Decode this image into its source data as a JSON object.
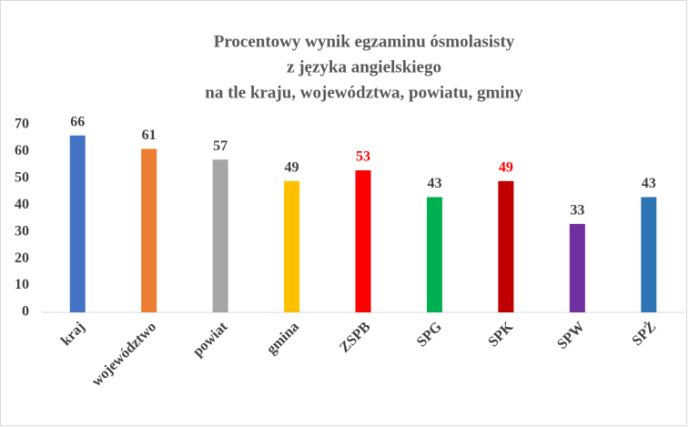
{
  "chart_data": {
    "type": "bar",
    "title": [
      "Procentowy wynik egzaminu ósmolasisty",
      "z języka angielskiego",
      "na tle kraju, województwa, powiatu, gminy"
    ],
    "categories": [
      "kraj",
      "województwo",
      "powiat",
      "gmina",
      "ZSPB",
      "SPG",
      "SPK",
      "SPW",
      "SPŻ"
    ],
    "values": [
      66,
      61,
      57,
      49,
      53,
      43,
      49,
      33,
      43
    ],
    "colors": [
      "#4472c4",
      "#ed7d31",
      "#a5a5a5",
      "#ffc000",
      "#ff0000",
      "#00b050",
      "#c00000",
      "#7030a0",
      "#2e75b6"
    ],
    "value_label_colors": [
      "#404040",
      "#404040",
      "#404040",
      "#404040",
      "#ff0000",
      "#404040",
      "#ff0000",
      "#404040",
      "#404040"
    ],
    "ylim": [
      0,
      70
    ],
    "yticks": [
      0,
      10,
      20,
      30,
      40,
      50,
      60,
      70
    ],
    "grid": false
  }
}
